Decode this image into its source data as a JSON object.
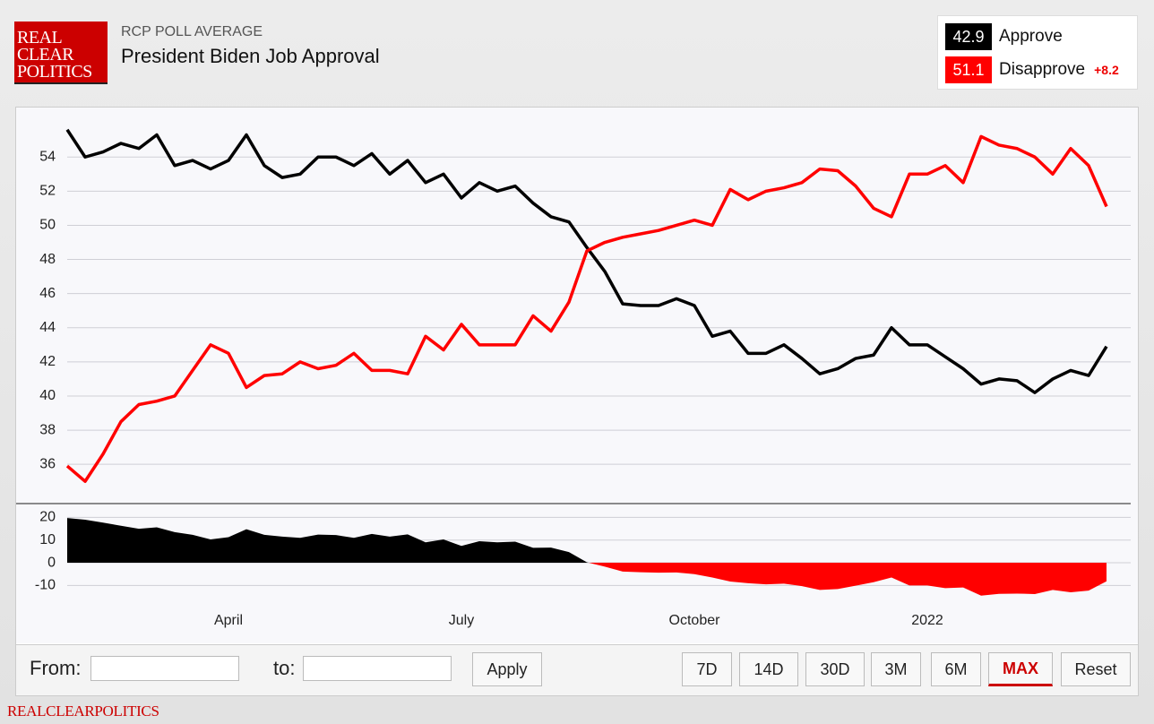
{
  "header": {
    "logo_lines": [
      "REAL",
      "CLEAR",
      "POLITICS"
    ],
    "kicker": "RCP POLL AVERAGE",
    "title": "President Biden Job Approval"
  },
  "legend": {
    "spread_label": "+8.2"
  },
  "chart_data": [
    {
      "type": "line",
      "categories": [
        null,
        null,
        null,
        null,
        null,
        null,
        null,
        null,
        null,
        "April",
        null,
        null,
        null,
        null,
        null,
        null,
        null,
        null,
        null,
        null,
        null,
        null,
        "July",
        null,
        null,
        null,
        null,
        null,
        null,
        null,
        null,
        null,
        null,
        null,
        null,
        "October",
        null,
        null,
        null,
        null,
        null,
        null,
        null,
        null,
        null,
        null,
        null,
        null,
        "2022",
        null,
        null,
        null,
        null,
        null,
        null,
        null,
        null,
        null,
        null
      ],
      "series": [
        {
          "name": "Approve",
          "color": "#000000",
          "values": [
            55.6,
            54.0,
            54.3,
            54.8,
            54.5,
            55.3,
            53.5,
            53.8,
            53.3,
            53.8,
            55.3,
            53.5,
            52.8,
            53.0,
            54.0,
            54.0,
            53.5,
            54.2,
            53.0,
            53.8,
            52.5,
            53.0,
            51.6,
            52.5,
            52.0,
            52.3,
            51.3,
            50.5,
            50.2,
            48.7,
            47.3,
            45.4,
            45.3,
            45.3,
            45.7,
            45.3,
            43.5,
            43.8,
            42.5,
            42.5,
            43.0,
            42.2,
            41.3,
            41.6,
            42.2,
            42.4,
            44.0,
            43.0,
            43.0,
            42.3,
            41.6,
            40.7,
            41.0,
            40.9,
            40.2,
            41.0,
            41.5,
            41.2,
            42.9
          ]
        },
        {
          "name": "Disapprove",
          "color": "#ff0000",
          "values": [
            35.9,
            35.0,
            36.6,
            38.5,
            39.5,
            39.7,
            40.0,
            41.5,
            43.0,
            42.5,
            40.5,
            41.2,
            41.3,
            42.0,
            41.6,
            41.8,
            42.5,
            41.5,
            41.5,
            41.3,
            43.5,
            42.7,
            44.2,
            43.0,
            43.0,
            43.0,
            44.7,
            43.8,
            45.5,
            48.5,
            49.0,
            49.3,
            49.5,
            49.7,
            50.0,
            50.3,
            50.0,
            52.1,
            51.5,
            52.0,
            52.2,
            52.5,
            53.3,
            53.2,
            52.3,
            51.0,
            50.5,
            53.0,
            53.0,
            53.5,
            52.5,
            55.2,
            54.7,
            54.5,
            54.0,
            53.0,
            54.5,
            53.5,
            51.1
          ]
        }
      ],
      "ylim": [
        33.7,
        56.9
      ],
      "yticks": [
        36,
        38,
        40,
        42,
        44,
        46,
        48,
        50,
        52,
        54
      ],
      "grid": true
    },
    {
      "type": "area",
      "values": [
        19.7,
        19.0,
        17.7,
        16.3,
        15.0,
        15.6,
        13.5,
        12.3,
        10.3,
        11.3,
        14.8,
        12.3,
        11.5,
        11.0,
        12.4,
        12.2,
        11.0,
        12.7,
        11.5,
        12.5,
        9.0,
        10.3,
        7.4,
        9.5,
        9.0,
        9.3,
        6.6,
        6.7,
        4.7,
        0.2,
        -1.7,
        -3.9,
        -4.2,
        -4.4,
        -4.3,
        -5.0,
        -6.5,
        -8.3,
        -9.0,
        -9.5,
        -9.2,
        -10.3,
        -12.0,
        -11.6,
        -10.1,
        -8.6,
        -6.5,
        -10.0,
        -10.0,
        -11.2,
        -10.9,
        -14.5,
        -13.7,
        -13.6,
        -13.8,
        -12.0,
        -13.0,
        -12.3,
        -8.2
      ],
      "ylim": [
        -15,
        25.7
      ],
      "yticks": [
        -10,
        0,
        10,
        20
      ],
      "grid": true,
      "color_positive": "#000000",
      "color_negative": "#ff0000"
    }
  ],
  "controls": {
    "from_label": "From:",
    "to_label": "to:",
    "apply": "Apply",
    "ranges": [
      "7D",
      "14D",
      "30D",
      "3M",
      "6M",
      "MAX",
      "Reset"
    ],
    "active_range": "MAX"
  },
  "footer": {
    "brand": "REALCLEARPOLITICS"
  }
}
